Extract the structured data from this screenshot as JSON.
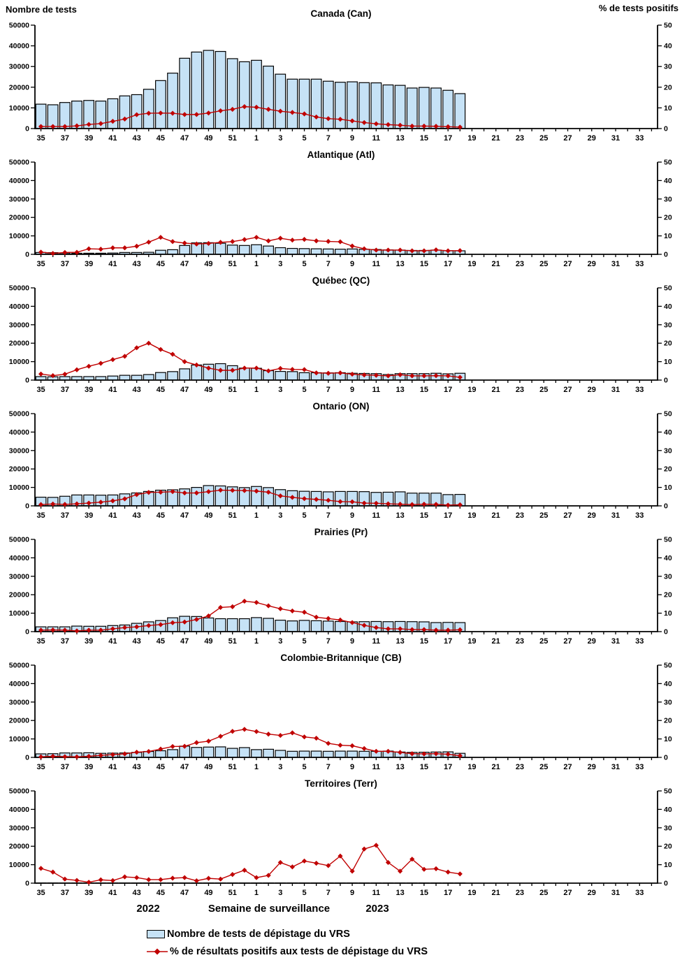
{
  "legend": [
    {
      "swatch": "bar",
      "label": "Nombre de tests de dépistage du VRS"
    },
    {
      "swatch": "line",
      "label": "% de résultats positifs aux tests de dépistage du VRS"
    }
  ],
  "colors": {
    "bar_fill": "#C6E2F6",
    "bar_stroke": "#000000",
    "line": "#C00000",
    "text": "#000000"
  },
  "chart_data": {
    "type": "combo_multi_panel",
    "description": "Nombre de tests de dépistage du VRS (barres, axe gauche) et % de résultats positifs (ligne, axe droit) par semaine de surveillance, 2022-2023",
    "categories": [
      35,
      36,
      37,
      38,
      39,
      40,
      41,
      42,
      43,
      44,
      45,
      46,
      47,
      48,
      49,
      50,
      51,
      52,
      1,
      2,
      3,
      4,
      5,
      6,
      7,
      8,
      9,
      10,
      11,
      12,
      13,
      14,
      15,
      16,
      17,
      18,
      19,
      20,
      21,
      22,
      23,
      24,
      25,
      26,
      27,
      28,
      29,
      30,
      31,
      32,
      33,
      34
    ],
    "x_axis": {
      "label": "Semaine de surveillance",
      "year_left": "2022",
      "year_right": "2023",
      "tick_labels": "odd weeks only",
      "data_through_week": 18
    },
    "left_axis": {
      "title": "Nombre de tests",
      "min": 0,
      "max": 50000,
      "tick_step": 10000
    },
    "right_axis": {
      "title": "% de tests positifs",
      "min": 0,
      "max": 50,
      "tick_step": 10
    },
    "grid": false,
    "panels": [
      {
        "name": "canada",
        "abbr": "Can",
        "title": "Canada (Can)",
        "tests": [
          11800,
          11500,
          12600,
          13300,
          13600,
          13300,
          14400,
          15800,
          16400,
          19000,
          23200,
          26800,
          34000,
          37000,
          37800,
          37300,
          33800,
          32300,
          33000,
          30200,
          26300,
          23900,
          23900,
          23900,
          22900,
          22400,
          22600,
          22200,
          22100,
          21100,
          20900,
          19600,
          19900,
          19600,
          18500,
          16900
        ],
        "pct_positive": [
          1.0,
          1.0,
          1.0,
          1.3,
          2.0,
          2.4,
          3.5,
          4.6,
          6.7,
          7.4,
          7.5,
          7.4,
          6.8,
          6.8,
          7.5,
          8.6,
          9.3,
          10.6,
          10.3,
          9.3,
          8.4,
          7.8,
          7.1,
          5.6,
          4.8,
          4.5,
          3.7,
          2.9,
          2.3,
          1.9,
          1.6,
          1.2,
          1.2,
          1.1,
          0.9,
          0.7
        ]
      },
      {
        "name": "atlantique",
        "abbr": "Atl",
        "title": "Atlantique (Atl)",
        "tests": [
          1000,
          900,
          700,
          600,
          600,
          600,
          700,
          1000,
          1000,
          1100,
          2200,
          2500,
          4800,
          6200,
          6300,
          6000,
          5000,
          4800,
          5200,
          4500,
          3600,
          3200,
          3100,
          3000,
          2900,
          2800,
          2900,
          2700,
          2600,
          2400,
          2300,
          2100,
          2100,
          2300,
          2000,
          1900
        ],
        "pct_positive": [
          1.2,
          0.5,
          1.0,
          1.1,
          3.0,
          2.8,
          3.5,
          3.5,
          4.4,
          6.6,
          9.2,
          6.9,
          6.1,
          5.6,
          5.9,
          6.5,
          6.9,
          8.0,
          9.2,
          7.3,
          8.7,
          7.7,
          8.1,
          7.3,
          7.0,
          6.8,
          4.5,
          3.0,
          2.3,
          2.3,
          2.3,
          1.9,
          1.9,
          2.4,
          1.9,
          2.0
        ]
      },
      {
        "name": "quebec",
        "abbr": "QC",
        "title": "Québec (QC)",
        "tests": [
          1900,
          1800,
          1900,
          1900,
          1900,
          1900,
          2200,
          2600,
          2600,
          3000,
          4100,
          4600,
          6100,
          8200,
          8600,
          8900,
          7800,
          6500,
          6400,
          5100,
          4700,
          4600,
          4000,
          4000,
          3900,
          4000,
          3700,
          3600,
          3500,
          3000,
          3500,
          3500,
          3500,
          3700,
          3400,
          3700
        ],
        "pct_positive": [
          3.3,
          2.4,
          3.2,
          5.6,
          7.5,
          9.1,
          11.1,
          12.9,
          17.5,
          20.0,
          16.6,
          14.0,
          10.0,
          8.2,
          6.5,
          5.3,
          5.3,
          6.5,
          6.5,
          5.0,
          6.3,
          5.8,
          5.7,
          3.9,
          3.7,
          3.9,
          3.2,
          2.8,
          2.6,
          2.3,
          2.9,
          2.3,
          2.3,
          2.4,
          2.3,
          1.5
        ]
      },
      {
        "name": "ontario",
        "abbr": "ON",
        "title": "Ontario (ON)",
        "tests": [
          4700,
          4600,
          5200,
          5900,
          5900,
          5800,
          5900,
          6500,
          7000,
          7800,
          8500,
          8700,
          9200,
          10000,
          11000,
          10800,
          10300,
          9900,
          10500,
          9900,
          8800,
          8200,
          7900,
          7800,
          7600,
          7800,
          7800,
          7700,
          7300,
          7400,
          7600,
          6900,
          6900,
          6900,
          6100,
          6200
        ],
        "pct_positive": [
          0.7,
          1.0,
          0.8,
          1.1,
          1.5,
          2.0,
          2.7,
          3.8,
          6.1,
          7.3,
          7.4,
          7.7,
          7.0,
          7.0,
          7.7,
          8.5,
          8.4,
          8.3,
          8.0,
          7.4,
          5.4,
          4.6,
          3.9,
          3.5,
          3.0,
          2.3,
          2.2,
          1.5,
          1.4,
          1.1,
          0.9,
          0.7,
          0.9,
          0.8,
          0.4,
          0.6
        ]
      },
      {
        "name": "prairies",
        "abbr": "Pr",
        "title": "Prairies (Pr)",
        "tests": [
          2600,
          2600,
          2600,
          3000,
          2900,
          2900,
          3300,
          3600,
          4500,
          5300,
          6000,
          7500,
          8300,
          8200,
          7400,
          7000,
          7000,
          7000,
          7600,
          7200,
          6200,
          5800,
          6100,
          5900,
          5700,
          5500,
          5300,
          5400,
          5500,
          5400,
          5500,
          5400,
          5300,
          4900,
          5000,
          4900
        ],
        "pct_positive": [
          0.8,
          0.9,
          0.8,
          0.4,
          0.8,
          0.8,
          1.5,
          2.2,
          2.6,
          3.3,
          3.8,
          4.8,
          5.2,
          6.6,
          8.5,
          13.1,
          13.5,
          16.5,
          15.8,
          14.0,
          12.4,
          11.2,
          10.5,
          7.8,
          7.1,
          6.3,
          4.9,
          3.4,
          2.2,
          1.5,
          1.5,
          1.1,
          1.1,
          0.8,
          0.8,
          1.0
        ]
      },
      {
        "name": "colombie-britannique",
        "abbr": "CB",
        "title": "Colombie-Britannique (CB)",
        "tests": [
          1900,
          2000,
          2400,
          2400,
          2500,
          2200,
          2300,
          2400,
          2700,
          3200,
          3600,
          4200,
          6100,
          5400,
          5600,
          5700,
          4900,
          5300,
          4200,
          4400,
          3800,
          3300,
          3400,
          3400,
          3300,
          3400,
          3400,
          3300,
          3300,
          3400,
          2900,
          2700,
          2800,
          2900,
          3000,
          2200
        ],
        "pct_positive": [
          0.3,
          0.6,
          0.4,
          0.3,
          0.6,
          1.1,
          1.5,
          1.9,
          2.8,
          3.2,
          4.5,
          5.9,
          6.0,
          8.0,
          8.8,
          11.4,
          14.1,
          15.2,
          14.0,
          12.6,
          11.9,
          13.3,
          11.1,
          10.4,
          7.6,
          6.6,
          6.3,
          4.8,
          3.3,
          3.3,
          2.7,
          2.0,
          1.9,
          2.0,
          1.7,
          0.9
        ]
      },
      {
        "name": "territoires",
        "abbr": "Terr",
        "title": "Territoires (Terr)",
        "tests": [
          100,
          100,
          100,
          100,
          100,
          100,
          100,
          100,
          100,
          100,
          100,
          100,
          100,
          100,
          100,
          100,
          100,
          100,
          100,
          100,
          100,
          100,
          100,
          100,
          100,
          100,
          100,
          100,
          100,
          100,
          100,
          100,
          100,
          100,
          100,
          100
        ],
        "pct_positive": [
          8.0,
          6.0,
          2.2,
          1.5,
          0.5,
          1.8,
          1.4,
          3.4,
          3.0,
          1.9,
          1.9,
          2.7,
          3.0,
          1.3,
          2.6,
          2.2,
          4.7,
          7.0,
          3.0,
          4.2,
          11.2,
          8.8,
          12.0,
          10.8,
          9.5,
          14.7,
          6.5,
          18.5,
          20.5,
          11.2,
          6.5,
          13.0,
          7.5,
          7.8,
          6.0,
          5.0
        ]
      }
    ]
  }
}
